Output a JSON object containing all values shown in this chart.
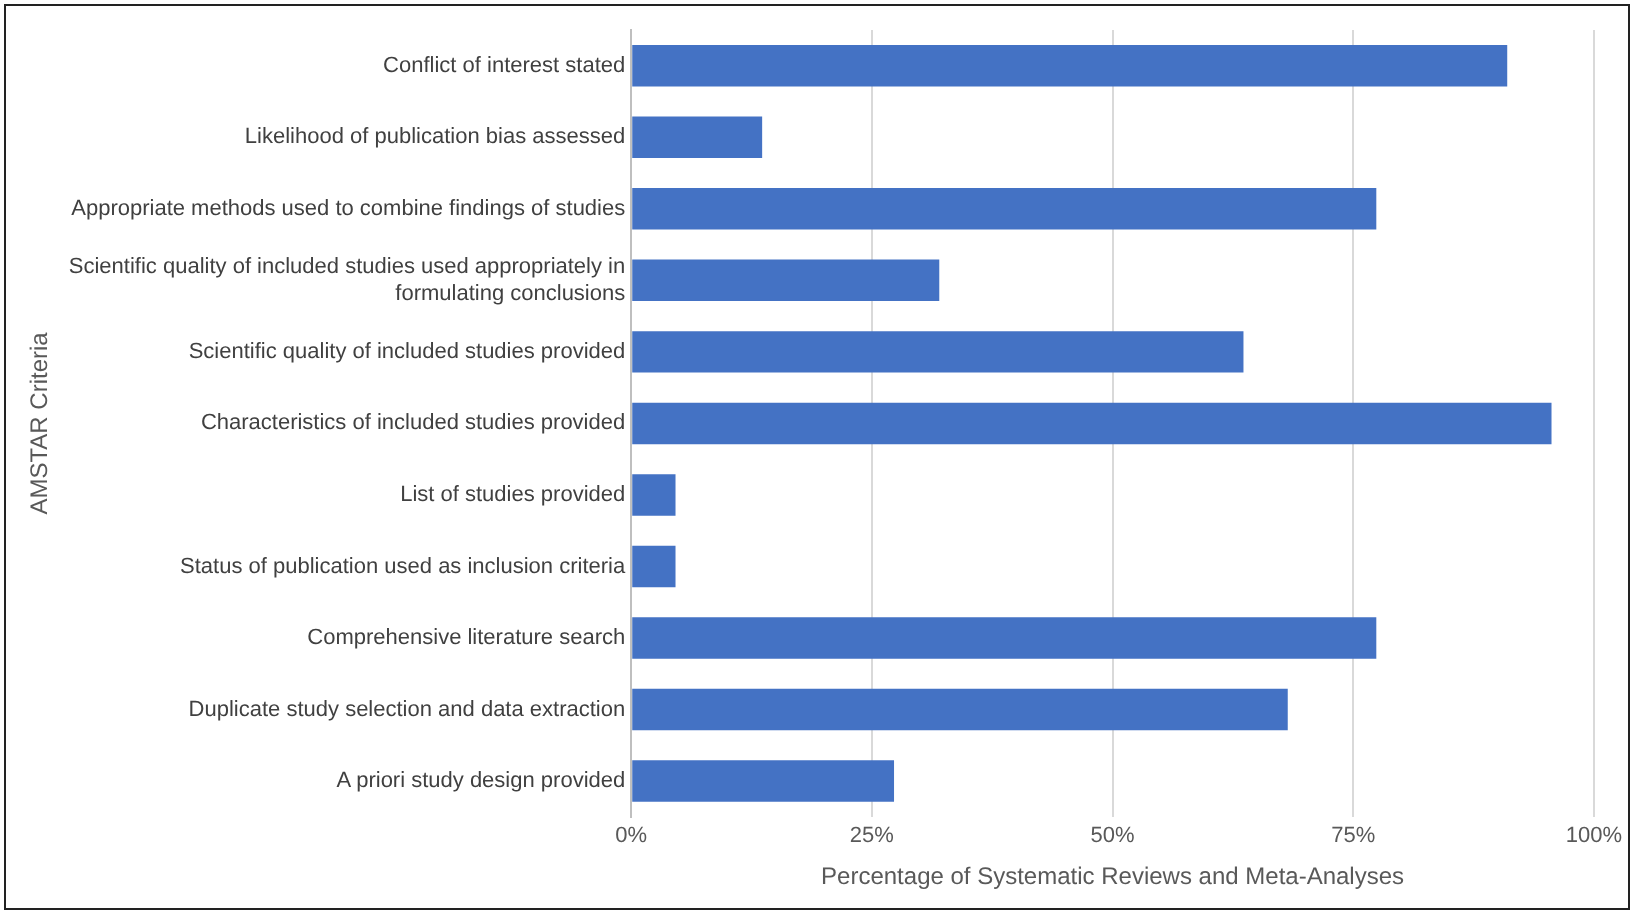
{
  "chart_data": {
    "type": "bar",
    "orientation": "horizontal",
    "xlabel": "Percentage of Systematic Reviews and Meta-Analyses",
    "ylabel": "AMSTAR Criteria",
    "categories": [
      "Conflict of interest stated",
      "Likelihood of publication bias assessed",
      "Appropriate methods used to combine findings of studies",
      "Scientific quality of included studies used appropriately in formulating conclusions",
      "Scientific quality of included studies provided",
      "Characteristics of included studies provided",
      "List of studies provided",
      "Status of publication used as inclusion criteria",
      "Comprehensive literature search",
      "Duplicate study selection and data extraction",
      "A priori study design provided"
    ],
    "values": [
      91,
      13.6,
      77.4,
      32,
      63.6,
      95.6,
      4.6,
      4.6,
      77.4,
      68.2,
      27.3
    ],
    "color": "#4472c4",
    "xlim": [
      0,
      100
    ],
    "xticks": [
      {
        "value": 0,
        "label": "0%"
      },
      {
        "value": 25,
        "label": "25%"
      },
      {
        "value": 50,
        "label": "50%"
      },
      {
        "value": 75,
        "label": "75%"
      },
      {
        "value": 100,
        "label": "100%"
      }
    ],
    "grid": "x"
  }
}
